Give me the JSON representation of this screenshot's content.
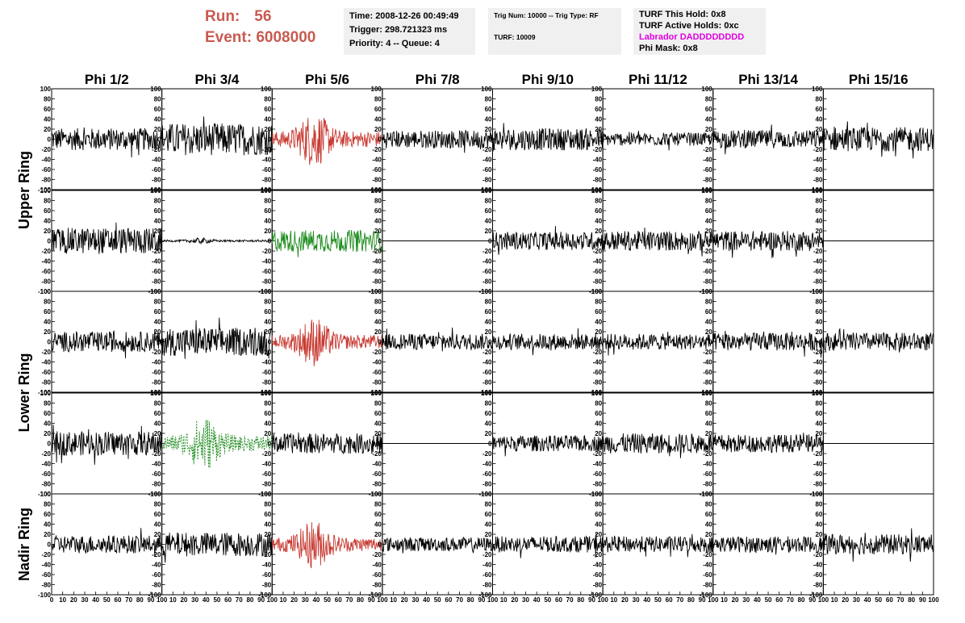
{
  "header": {
    "run_label": "Run:",
    "run_value": "56",
    "event_label": "Event:",
    "event_value": "6008000"
  },
  "info_boxes": {
    "time": "Time: 2008-12-26 00:49:49",
    "trigger": "Trigger: 298.721323 ms",
    "priority": "Priority: 4 -- Queue: 4",
    "trig_num": "Trig Num: 10000 -- Trig Type: RF",
    "turf": "TURF: 10009",
    "turf_hold": "TURF This Hold: 0x8",
    "turf_active": "TURF Active Holds: 0xc",
    "labrador": "Labrador DADDDDDDDD",
    "phi_mask": "Phi Mask: 0x8"
  },
  "colors": {
    "red": "#c83a32",
    "green": "#1e8c1e",
    "black": "#000000",
    "title_red": "#c85a50",
    "magenta": "#e000e0"
  },
  "chart_data": {
    "type": "line",
    "columns": [
      "Phi 1/2",
      "Phi 3/4",
      "Phi 5/6",
      "Phi 7/8",
      "Phi 9/10",
      "Phi 11/12",
      "Phi 13/14",
      "Phi 15/16"
    ],
    "ring_labels": [
      "Upper Ring",
      "Lower Ring",
      "Nadir Ring"
    ],
    "ylim": [
      -100,
      100
    ],
    "xlim": [
      0,
      100
    ],
    "yticks": [
      -100,
      -80,
      -60,
      -40,
      -20,
      0,
      20,
      40,
      60,
      80,
      100
    ],
    "xticks": [
      0,
      10,
      20,
      30,
      40,
      50,
      60,
      70,
      80,
      90,
      100
    ],
    "grid": false,
    "rows": [
      {
        "ring": "Upper Ring",
        "cells": [
          {
            "style": "noise",
            "color": "black",
            "amp": 22
          },
          {
            "style": "noise",
            "color": "black",
            "amp": 32
          },
          {
            "style": "burst",
            "color": "red",
            "amp": 45
          },
          {
            "style": "noise",
            "color": "black",
            "amp": 18
          },
          {
            "style": "noise",
            "color": "black",
            "amp": 22
          },
          {
            "style": "noise",
            "color": "black",
            "amp": 13
          },
          {
            "style": "noise",
            "color": "black",
            "amp": 18
          },
          {
            "style": "noise",
            "color": "black",
            "amp": 24
          }
        ]
      },
      {
        "ring": "Upper Ring",
        "cells": [
          {
            "style": "noise",
            "color": "black",
            "amp": 26
          },
          {
            "style": "quiet",
            "color": "black",
            "amp": 5
          },
          {
            "style": "noise",
            "color": "green",
            "amp": 22
          },
          {
            "style": "flat",
            "color": "black",
            "amp": 0
          },
          {
            "style": "noise",
            "color": "black",
            "amp": 18
          },
          {
            "style": "noise",
            "color": "black",
            "amp": 20
          },
          {
            "style": "noise",
            "color": "black",
            "amp": 20
          },
          {
            "style": "flat",
            "color": "black",
            "amp": 0
          }
        ]
      },
      {
        "ring": "Lower Ring",
        "cells": [
          {
            "style": "noise",
            "color": "black",
            "amp": 20
          },
          {
            "style": "noise",
            "color": "black",
            "amp": 28
          },
          {
            "style": "burst",
            "color": "red",
            "amp": 40
          },
          {
            "style": "noise",
            "color": "black",
            "amp": 16
          },
          {
            "style": "noise",
            "color": "black",
            "amp": 16
          },
          {
            "style": "noise",
            "color": "black",
            "amp": 16
          },
          {
            "style": "noise",
            "color": "black",
            "amp": 18
          },
          {
            "style": "noise",
            "color": "black",
            "amp": 18
          }
        ]
      },
      {
        "ring": "Lower Ring",
        "cells": [
          {
            "style": "noise",
            "color": "black",
            "amp": 24
          },
          {
            "style": "dashed",
            "color": "green",
            "amp": 45
          },
          {
            "style": "noise",
            "color": "black",
            "amp": 20
          },
          {
            "style": "flat",
            "color": "black",
            "amp": 0
          },
          {
            "style": "noise",
            "color": "black",
            "amp": 16
          },
          {
            "style": "noise",
            "color": "black",
            "amp": 20
          },
          {
            "style": "noise",
            "color": "black",
            "amp": 18
          },
          {
            "style": "flat",
            "color": "black",
            "amp": 0
          }
        ]
      },
      {
        "ring": "Nadir Ring",
        "cells": [
          {
            "style": "noise",
            "color": "black",
            "amp": 18
          },
          {
            "style": "noise",
            "color": "black",
            "amp": 24
          },
          {
            "style": "burst",
            "color": "red",
            "amp": 40
          },
          {
            "style": "noise",
            "color": "black",
            "amp": 14
          },
          {
            "style": "noise",
            "color": "black",
            "amp": 16
          },
          {
            "style": "noise",
            "color": "black",
            "amp": 16
          },
          {
            "style": "noise",
            "color": "black",
            "amp": 16
          },
          {
            "style": "noise",
            "color": "black",
            "amp": 20
          }
        ]
      }
    ]
  }
}
